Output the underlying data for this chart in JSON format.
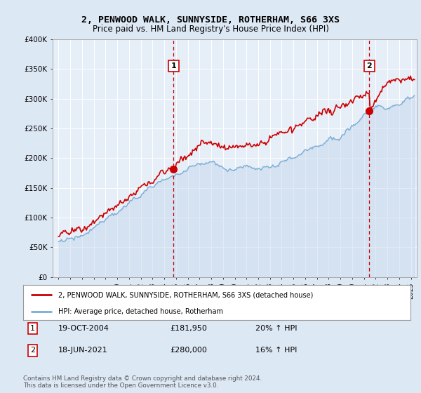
{
  "title1": "2, PENWOOD WALK, SUNNYSIDE, ROTHERHAM, S66 3XS",
  "title2": "Price paid vs. HM Land Registry's House Price Index (HPI)",
  "hpi_label": "HPI: Average price, detached house, Rotherham",
  "price_label": "2, PENWOOD WALK, SUNNYSIDE, ROTHERHAM, S66 3XS (detached house)",
  "footer_text": "Contains HM Land Registry data © Crown copyright and database right 2024.\nThis data is licensed under the Open Government Licence v3.0.",
  "sale1_date": "19-OCT-2004",
  "sale1_price": 181950,
  "sale1_price_str": "£181,950",
  "sale1_pct": "20%",
  "sale2_date": "18-JUN-2021",
  "sale2_price": 280000,
  "sale2_price_str": "£280,000",
  "sale2_pct": "16%",
  "sale1_year": 2004.8,
  "sale2_year": 2021.46,
  "ylim": [
    0,
    400000
  ],
  "xlim_start": 1994.5,
  "xlim_end": 2025.5,
  "bg_color": "#dde8f5",
  "plot_bg": "#e6eef8",
  "red_color": "#cc0000",
  "blue_color": "#7aadd4",
  "blue_fill": "#c5d8ed",
  "grid_color": "#ffffff",
  "title_fontsize": 9.5,
  "subtitle_fontsize": 8.5
}
